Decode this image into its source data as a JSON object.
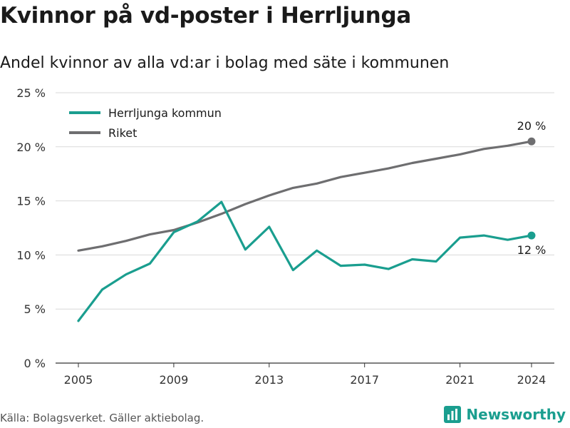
{
  "title": "Kvinnor på vd-poster i Herrljunga",
  "subtitle": "Andel kvinnor av alla vd:ar i bolag med säte i kommunen",
  "source": "Källa: Bolagsverket. Gäller aktiebolag.",
  "brand": "Newsworthy",
  "colors": {
    "herrljunga": "#1a9e8f",
    "riket": "#6e6e70",
    "grid": "#d9d9d9"
  },
  "chart_data": {
    "type": "line",
    "x": [
      2005,
      2006,
      2007,
      2008,
      2009,
      2010,
      2011,
      2012,
      2013,
      2014,
      2015,
      2016,
      2017,
      2018,
      2019,
      2020,
      2021,
      2022,
      2023,
      2024
    ],
    "series": [
      {
        "name": "Herrljunga kommun",
        "color": "#1a9e8f",
        "values": [
          3.9,
          6.8,
          8.2,
          9.2,
          12.1,
          13.1,
          14.9,
          10.5,
          12.6,
          8.6,
          10.4,
          9.0,
          9.1,
          8.7,
          9.6,
          9.4,
          11.6,
          11.8,
          11.4,
          11.8
        ],
        "end_label": "12 %"
      },
      {
        "name": "Riket",
        "color": "#6e6e70",
        "values": [
          10.4,
          10.8,
          11.3,
          11.9,
          12.3,
          13.0,
          13.8,
          14.7,
          15.5,
          16.2,
          16.6,
          17.2,
          17.6,
          18.0,
          18.5,
          18.9,
          19.3,
          19.8,
          20.1,
          20.5
        ],
        "end_label": "20 %"
      }
    ],
    "x_ticks": [
      2005,
      2009,
      2013,
      2017,
      2021,
      2024
    ],
    "x_tick_labels": [
      "2005",
      "2009",
      "2013",
      "2017",
      "2021",
      "2024"
    ],
    "y_ticks": [
      0,
      5,
      10,
      15,
      20,
      25
    ],
    "y_tick_labels": [
      "0 %",
      "5 %",
      "10 %",
      "15 %",
      "20 %",
      "25 %"
    ],
    "ylim": [
      0,
      25
    ],
    "xlim": [
      2005,
      2024
    ],
    "grid": true,
    "legend_position": "top-left"
  }
}
